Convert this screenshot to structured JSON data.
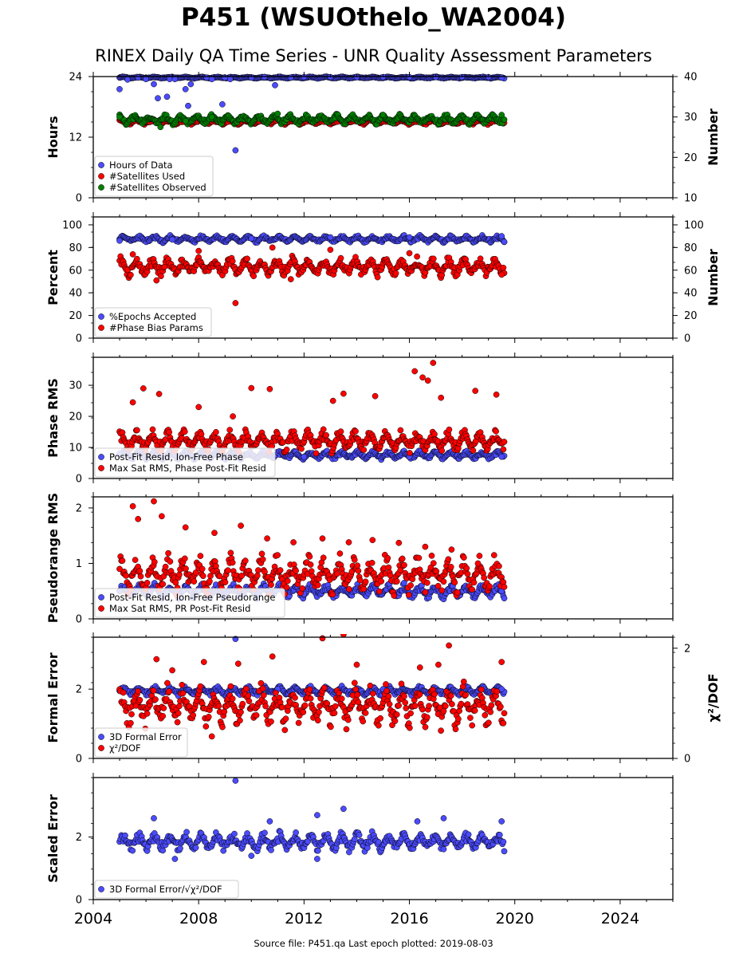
{
  "page": {
    "title": "P451 (WSUOthelo_WA2004)",
    "subtitle": "RINEX Daily QA Time Series - UNR Quality Assessment Parameters",
    "source_note": "Source file: P451.qa Last epoch plotted: 2019-08-03"
  },
  "colors": {
    "blue": "#4b4bff",
    "red": "#ff0000",
    "green": "#008000",
    "edge": "#000000"
  },
  "chart_data": [
    {
      "type": "scatter",
      "xlim": [
        2004,
        2026
      ],
      "xticks": [
        "2004",
        "2008",
        "2012",
        "2016",
        "2020",
        "2024"
      ],
      "ylabel": "Hours",
      "ylim": [
        0,
        24
      ],
      "yticks": [
        "0",
        "12",
        "24"
      ],
      "y2label": "Number",
      "y2lim": [
        10,
        40
      ],
      "y2ticks": [
        "10",
        "20",
        "30",
        "40"
      ],
      "legend_position": "lower-left",
      "series": [
        {
          "name": "Hours of Data",
          "color": "blue",
          "axis": "left",
          "points": [
            [
              2005.0,
              21.5
            ],
            [
              2005.3,
              23.4
            ],
            [
              2005.7,
              23.8
            ],
            [
              2006.0,
              23.5
            ],
            [
              2006.3,
              22.5
            ],
            [
              2006.45,
              19.7
            ],
            [
              2006.8,
              20.0
            ],
            [
              2006.9,
              23.5
            ],
            [
              2007.1,
              23.5
            ],
            [
              2007.5,
              21.5
            ],
            [
              2007.6,
              18.2
            ],
            [
              2007.7,
              22.5
            ],
            [
              2008.3,
              23.8
            ],
            [
              2008.5,
              23.5
            ],
            [
              2008.9,
              18.5
            ],
            [
              2009.0,
              23.8
            ],
            [
              2009.2,
              23.5
            ],
            [
              2009.4,
              9.4
            ],
            [
              2010.0,
              23.8
            ],
            [
              2010.5,
              23.9
            ],
            [
              2010.9,
              22.3
            ],
            [
              2011.5,
              23.8
            ],
            [
              2012.0,
              23.9
            ],
            [
              2013.0,
              23.9
            ],
            [
              2014.0,
              23.9
            ],
            [
              2015.0,
              23.9
            ],
            [
              2016.0,
              23.9
            ],
            [
              2017.0,
              23.9
            ],
            [
              2018.0,
              23.9
            ],
            [
              2019.0,
              23.9
            ],
            [
              2019.5,
              23.8
            ]
          ],
          "band": [
            2005,
            2019.6,
            23.6,
            24
          ]
        },
        {
          "name": "#Satellites Used",
          "color": "red",
          "axis": "right",
          "points": [
            [
              2005.4,
              29.0
            ],
            [
              2006.8,
              29.2
            ],
            [
              2009.6,
              29.8
            ]
          ],
          "band": [
            2005,
            2019.6,
            28,
            29.5
          ]
        },
        {
          "name": "#Satellites Observed",
          "color": "green",
          "axis": "right",
          "points": [
            [
              2005.0,
              30.0
            ],
            [
              2006.55,
              27.5
            ],
            [
              2007.5,
              29.0
            ],
            [
              2008.5,
              30.0
            ],
            [
              2011.0,
              30.8
            ],
            [
              2015.0,
              30.5
            ],
            [
              2019.5,
              30.5
            ]
          ],
          "band": [
            2005,
            2019.6,
            28,
            30.8
          ]
        }
      ]
    },
    {
      "type": "scatter",
      "xlim": [
        2004,
        2026
      ],
      "xticks": [
        "2004",
        "2008",
        "2012",
        "2016",
        "2020",
        "2024"
      ],
      "ylabel": "Percent",
      "ylim": [
        0,
        107
      ],
      "yticks": [
        "0",
        "20",
        "40",
        "60",
        "80",
        "100"
      ],
      "y2label": "Number",
      "y2lim": [
        0,
        107
      ],
      "y2ticks": [
        "0",
        "20",
        "40",
        "60",
        "80",
        "100"
      ],
      "legend_position": "lower-left",
      "series": [
        {
          "name": "%Epochs Accepted",
          "color": "blue",
          "axis": "left",
          "points": [
            [
              2005.0,
              86
            ],
            [
              2007.0,
              87
            ],
            [
              2010.0,
              88
            ],
            [
              2013.0,
              89
            ],
            [
              2016.0,
              89
            ],
            [
              2019.5,
              90
            ],
            [
              2019.6,
              85
            ]
          ],
          "band": [
            2005,
            2019.6,
            84,
            91
          ]
        },
        {
          "name": "#Phase Bias Params",
          "color": "red",
          "axis": "right",
          "points": [
            [
              2005.5,
              74
            ],
            [
              2006.4,
              51
            ],
            [
              2008.0,
              77
            ],
            [
              2009.4,
              31
            ],
            [
              2010.8,
              80
            ],
            [
              2011.5,
              52
            ],
            [
              2013.0,
              78
            ],
            [
              2016.0,
              75
            ],
            [
              2019.5,
              56
            ]
          ],
          "band": [
            2005,
            2019.6,
            53,
            73
          ]
        }
      ]
    },
    {
      "type": "scatter",
      "xlim": [
        2004,
        2026
      ],
      "xticks": [
        "2004",
        "2008",
        "2012",
        "2016",
        "2020",
        "2024"
      ],
      "ylabel": "Phase RMS",
      "ylim": [
        0,
        39
      ],
      "yticks": [
        "0",
        "10",
        "20",
        "30"
      ],
      "legend_position": "lower-left",
      "series": [
        {
          "name": "Post-Fit Resid, Ion-Free Phase",
          "color": "blue",
          "axis": "left",
          "points": [
            [
              2005.0,
              8
            ],
            [
              2008.0,
              7.5
            ],
            [
              2012.0,
              7
            ],
            [
              2016.0,
              7
            ],
            [
              2019.5,
              7
            ]
          ],
          "band": [
            2005,
            2019.6,
            6,
            9
          ]
        },
        {
          "name": "Max Sat RMS, Phase Post-Fit Resid",
          "color": "red",
          "axis": "left",
          "points": [
            [
              2005.5,
              24.5
            ],
            [
              2005.9,
              29
            ],
            [
              2006.5,
              27.2
            ],
            [
              2008.0,
              23
            ],
            [
              2009.3,
              20
            ],
            [
              2010.0,
              29.1
            ],
            [
              2010.7,
              28.8
            ],
            [
              2013.1,
              25
            ],
            [
              2013.5,
              27.3
            ],
            [
              2014.7,
              26.5
            ],
            [
              2016.2,
              34.5
            ],
            [
              2016.5,
              32.5
            ],
            [
              2016.9,
              37.2
            ],
            [
              2016.7,
              31.5
            ],
            [
              2017.2,
              26
            ],
            [
              2018.5,
              28.2
            ],
            [
              2019.3,
              27
            ]
          ],
          "band": [
            2005,
            2019.6,
            8,
            16
          ]
        }
      ]
    },
    {
      "type": "scatter",
      "xlim": [
        2004,
        2026
      ],
      "xticks": [
        "2004",
        "2008",
        "2012",
        "2016",
        "2020",
        "2024"
      ],
      "ylabel": "Pseudorange RMS",
      "ylim": [
        0,
        2.2
      ],
      "yticks": [
        "0",
        "1",
        "2"
      ],
      "legend_position": "lower-left",
      "series": [
        {
          "name": "Post-Fit Resid, Ion-Free Pseudorange",
          "color": "blue",
          "axis": "left",
          "points": [
            [
              2005.0,
              0.5
            ],
            [
              2006.0,
              0.45
            ],
            [
              2008.0,
              0.5
            ],
            [
              2012.0,
              0.45
            ],
            [
              2016.0,
              0.4
            ],
            [
              2019.5,
              0.5
            ]
          ],
          "band": [
            2005,
            2019.6,
            0.35,
            0.65
          ]
        },
        {
          "name": "Max Sat RMS, PR Post-Fit Resid",
          "color": "red",
          "axis": "left",
          "points": [
            [
              2005.5,
              2.03
            ],
            [
              2006.3,
              2.12
            ],
            [
              2005.7,
              1.8
            ],
            [
              2006.6,
              1.85
            ],
            [
              2007.5,
              1.65
            ],
            [
              2008.6,
              1.55
            ],
            [
              2009.6,
              1.68
            ],
            [
              2010.6,
              1.45
            ],
            [
              2011.6,
              1.38
            ],
            [
              2012.7,
              1.45
            ],
            [
              2013.7,
              1.38
            ],
            [
              2014.6,
              1.42
            ],
            [
              2015.6,
              1.37
            ],
            [
              2016.6,
              1.3
            ],
            [
              2017.6,
              1.25
            ],
            [
              2018.6,
              1.0
            ],
            [
              2019.4,
              0.95
            ]
          ],
          "band": [
            2005,
            2019.6,
            0.4,
            1.2
          ]
        }
      ]
    },
    {
      "type": "scatter",
      "xlim": [
        2004,
        2026
      ],
      "xticks": [
        "2004",
        "2008",
        "2012",
        "2016",
        "2020",
        "2024"
      ],
      "ylabel": "Formal Error",
      "ylim": [
        0,
        3.5
      ],
      "yticks": [
        "0",
        "2"
      ],
      "y2label": "χ²/DOF",
      "y2lim": [
        0,
        2.2
      ],
      "y2ticks": [
        "0",
        "2"
      ],
      "legend_position": "lower-left",
      "series": [
        {
          "name": "3D Formal Error",
          "color": "blue",
          "axis": "left",
          "points": [
            [
              2009.4,
              3.45
            ],
            [
              2011.0,
              2.0
            ],
            [
              2015.0,
              2.0
            ],
            [
              2019.5,
              2.0
            ]
          ],
          "band": [
            2005,
            2019.6,
            1.8,
            2.1
          ]
        },
        {
          "name": "χ²/DOF",
          "color": "red",
          "axis": "right",
          "points": [
            [
              2006.4,
              1.8
            ],
            [
              2008.2,
              1.75
            ],
            [
              2009.5,
              1.72
            ],
            [
              2010.8,
              1.85
            ],
            [
              2012.7,
              2.18
            ],
            [
              2013.5,
              2.25
            ],
            [
              2014.0,
              1.7
            ],
            [
              2016.4,
              1.65
            ],
            [
              2017.1,
              1.7
            ],
            [
              2017.5,
              2.05
            ],
            [
              2019.5,
              1.75
            ],
            [
              2007.0,
              1.6
            ],
            [
              2008.5,
              0.4
            ]
          ],
          "band": [
            2005,
            2019.6,
            0.5,
            1.4
          ]
        }
      ]
    },
    {
      "type": "scatter",
      "xlim": [
        2004,
        2026
      ],
      "xticks": [
        "2004",
        "2008",
        "2012",
        "2016",
        "2020",
        "2024"
      ],
      "ylabel": "Scaled Error",
      "ylim": [
        0,
        3.9
      ],
      "yticks": [
        "0",
        "2"
      ],
      "legend_position": "lower-left",
      "series": [
        {
          "name": "3D Formal Error/√χ²/DOF",
          "color": "blue",
          "axis": "left",
          "points": [
            [
              2009.4,
              3.8
            ],
            [
              2006.3,
              2.6
            ],
            [
              2010.7,
              2.5
            ],
            [
              2012.5,
              2.7
            ],
            [
              2013.5,
              2.9
            ],
            [
              2016.3,
              2.5
            ],
            [
              2017.3,
              2.6
            ],
            [
              2019.5,
              2.5
            ],
            [
              2007.1,
              1.3
            ],
            [
              2010.0,
              1.4
            ],
            [
              2012.5,
              1.3
            ]
          ],
          "band": [
            2005,
            2019.6,
            1.5,
            2.2
          ]
        }
      ]
    }
  ]
}
